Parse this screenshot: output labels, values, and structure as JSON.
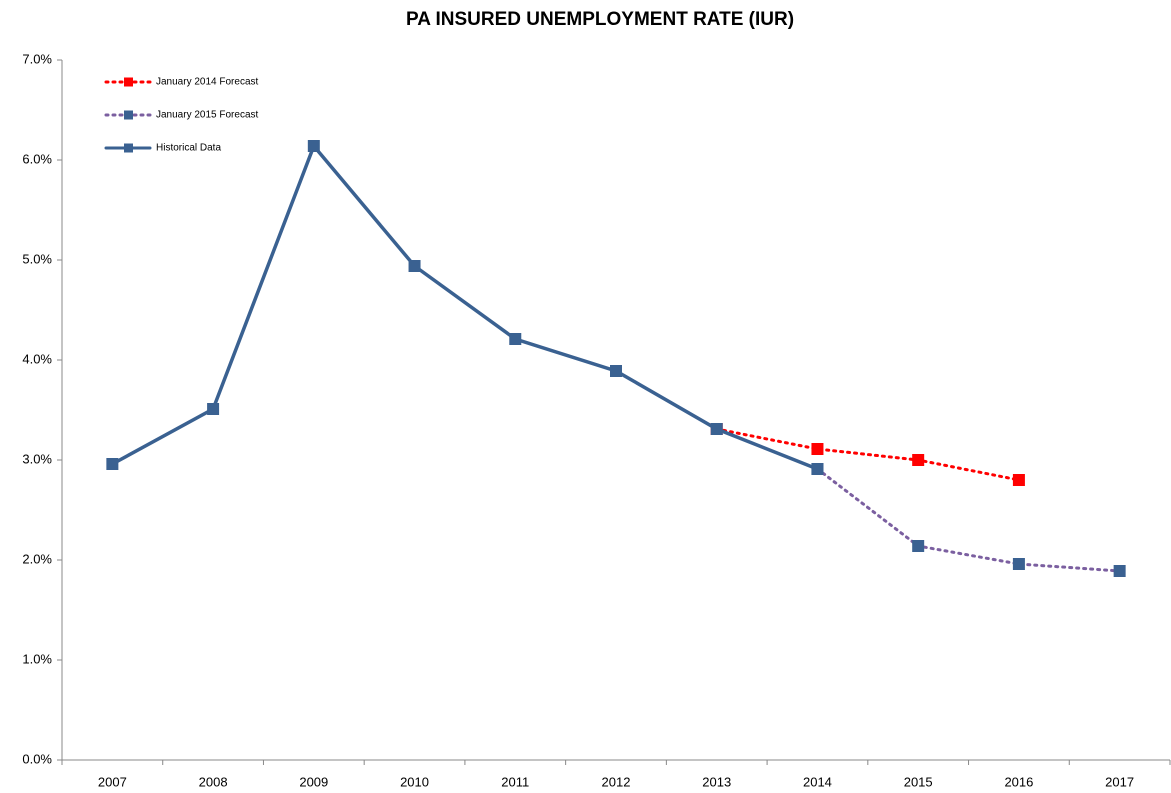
{
  "chart_data": {
    "type": "line",
    "title": "PA INSURED UNEMPLOYMENT RATE (IUR)",
    "categories": [
      "2007",
      "2008",
      "2009",
      "2010",
      "2011",
      "2012",
      "2013",
      "2014",
      "2015",
      "2016",
      "2017"
    ],
    "series": [
      {
        "name": "January 2014 Forecast",
        "color": "#ff0000",
        "style": "dotted",
        "values": [
          null,
          null,
          null,
          null,
          null,
          null,
          3.31,
          3.11,
          3.0,
          2.8,
          null
        ]
      },
      {
        "name": "January 2015 Forecast",
        "color": "#7b5fa0",
        "marker_color": "#3a6191",
        "style": "dotted",
        "values": [
          null,
          null,
          null,
          null,
          null,
          null,
          null,
          2.91,
          2.14,
          1.96,
          1.89
        ]
      },
      {
        "name": "Historical Data",
        "color": "#3a6191",
        "style": "solid",
        "values": [
          2.96,
          3.51,
          6.14,
          4.94,
          4.21,
          3.89,
          3.31,
          2.91,
          null,
          null,
          null
        ]
      }
    ],
    "ylim": [
      0,
      7
    ],
    "yticks": [
      {
        "value": 0,
        "label": "0.0%"
      },
      {
        "value": 1,
        "label": "1.0%"
      },
      {
        "value": 2,
        "label": "2.0%"
      },
      {
        "value": 3,
        "label": "3.0%"
      },
      {
        "value": 4,
        "label": "4.0%"
      },
      {
        "value": 5,
        "label": "5.0%"
      },
      {
        "value": 6,
        "label": "6.0%"
      },
      {
        "value": 7,
        "label": "7.0%"
      }
    ],
    "legend": "upper left",
    "grid": false
  }
}
